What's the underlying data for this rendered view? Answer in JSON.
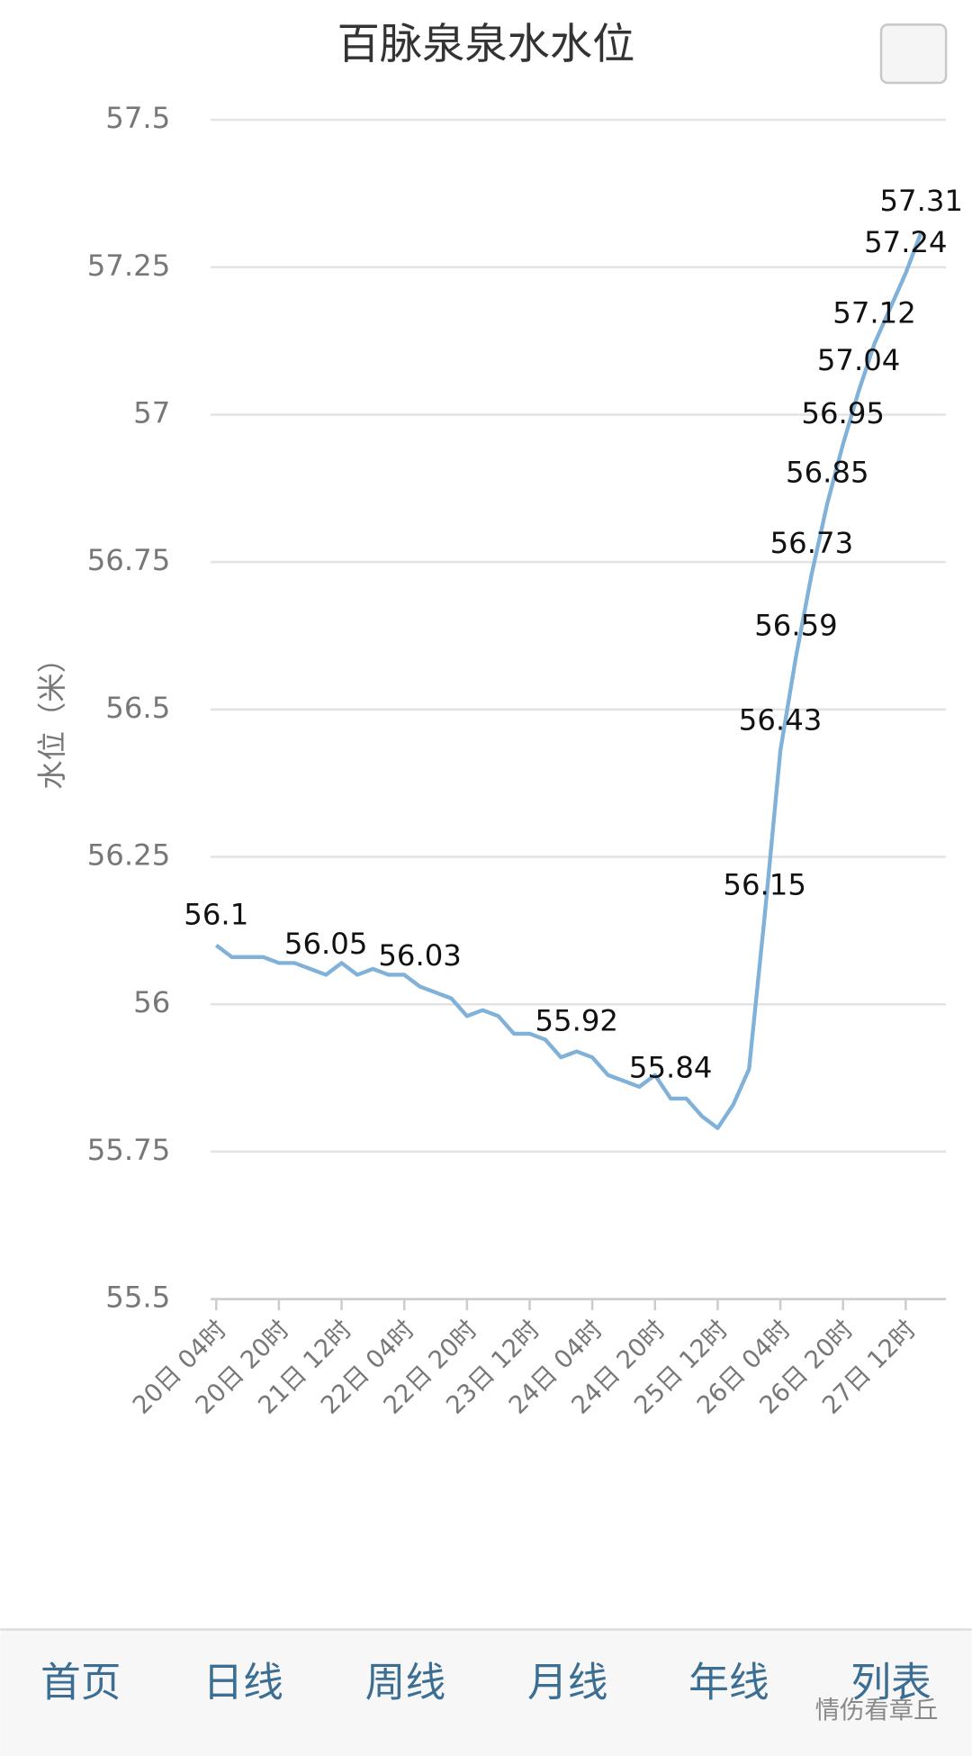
{
  "chart_data": {
    "type": "line",
    "title": "百脉泉泉水水位",
    "y_label": "水位（米）",
    "categories": [
      "20日 04时",
      null,
      null,
      null,
      "20日 20时",
      null,
      null,
      null,
      "21日 12时",
      null,
      null,
      null,
      "22日 04时",
      null,
      null,
      null,
      "22日 20时",
      null,
      null,
      null,
      "23日 12时",
      null,
      null,
      null,
      "24日 04时",
      null,
      null,
      null,
      "24日 20时",
      null,
      null,
      null,
      "25日 12时",
      null,
      null,
      null,
      "26日 04时",
      null,
      null,
      null,
      "26日 20时",
      null,
      null,
      null,
      "27日 12时",
      null
    ],
    "series": [
      {
        "color": "#80b1d9",
        "values": [
          56.1,
          56.08,
          56.08,
          56.08,
          56.07,
          56.07,
          56.06,
          56.05,
          56.07,
          56.05,
          56.06,
          56.05,
          56.05,
          56.03,
          56.02,
          56.01,
          55.98,
          55.99,
          55.98,
          55.95,
          55.95,
          55.94,
          55.91,
          55.92,
          55.91,
          55.88,
          55.87,
          55.86,
          55.88,
          55.84,
          55.84,
          55.81,
          55.79,
          55.83,
          55.89,
          56.15,
          56.43,
          56.59,
          56.73,
          56.85,
          56.95,
          57.04,
          57.12,
          57.18,
          57.24,
          57.31
        ],
        "value_labels": [
          "56.1",
          null,
          null,
          null,
          null,
          null,
          null,
          "56.05",
          null,
          null,
          null,
          null,
          null,
          "56.03",
          null,
          null,
          null,
          null,
          null,
          null,
          null,
          null,
          null,
          "55.92",
          null,
          null,
          null,
          null,
          null,
          "55.84",
          null,
          null,
          null,
          null,
          null,
          "56.15",
          "56.43",
          "56.59",
          "56.73",
          "56.85",
          "56.95",
          "57.04",
          "57.12",
          null,
          "57.24",
          "57.31"
        ]
      }
    ],
    "ylim": [
      55.5,
      57.5
    ],
    "yticks": [
      55.5,
      55.75,
      56,
      56.25,
      56.5,
      56.75,
      57,
      57.25,
      57.5
    ],
    "grid": true
  },
  "nav": [
    "首页",
    "日线",
    "周线",
    "月线",
    "年线",
    "列表"
  ],
  "watermark": "情伤看章丘"
}
